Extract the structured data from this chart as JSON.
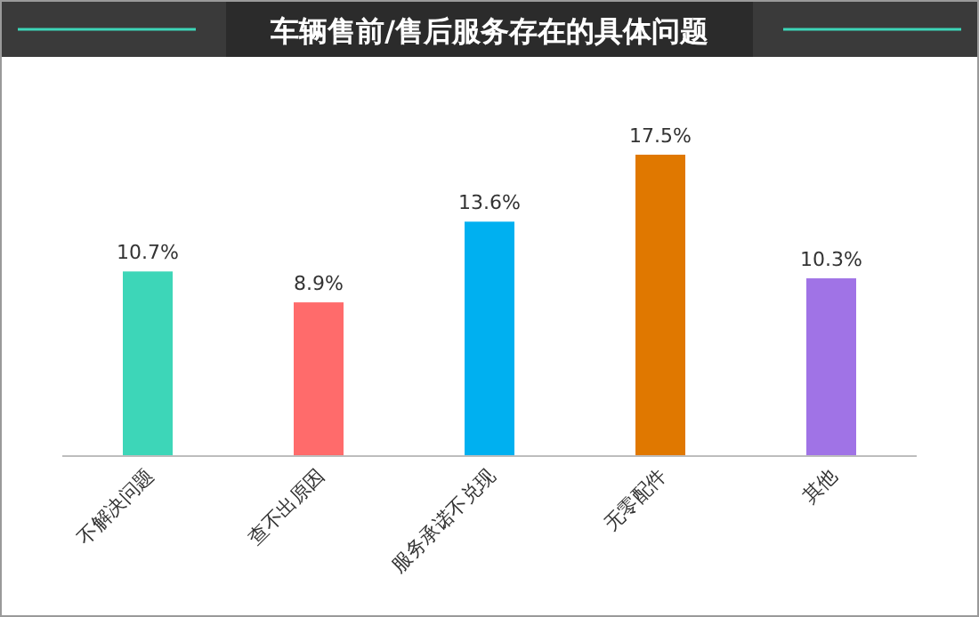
{
  "chart_data": {
    "type": "bar",
    "title": "车辆售前/售后服务存在的具体问题",
    "categories": [
      "不解决问题",
      "查不出原因",
      "服务承诺不兑现",
      "无零配件",
      "其他"
    ],
    "values": [
      10.7,
      8.9,
      13.6,
      17.5,
      10.3
    ],
    "value_labels": [
      "10.7%",
      "8.9%",
      "13.6%",
      "17.5%",
      "10.3%"
    ],
    "colors": [
      "#3dd6b8",
      "#ff6b6b",
      "#00b0f0",
      "#e07800",
      "#a073e6"
    ]
  }
}
